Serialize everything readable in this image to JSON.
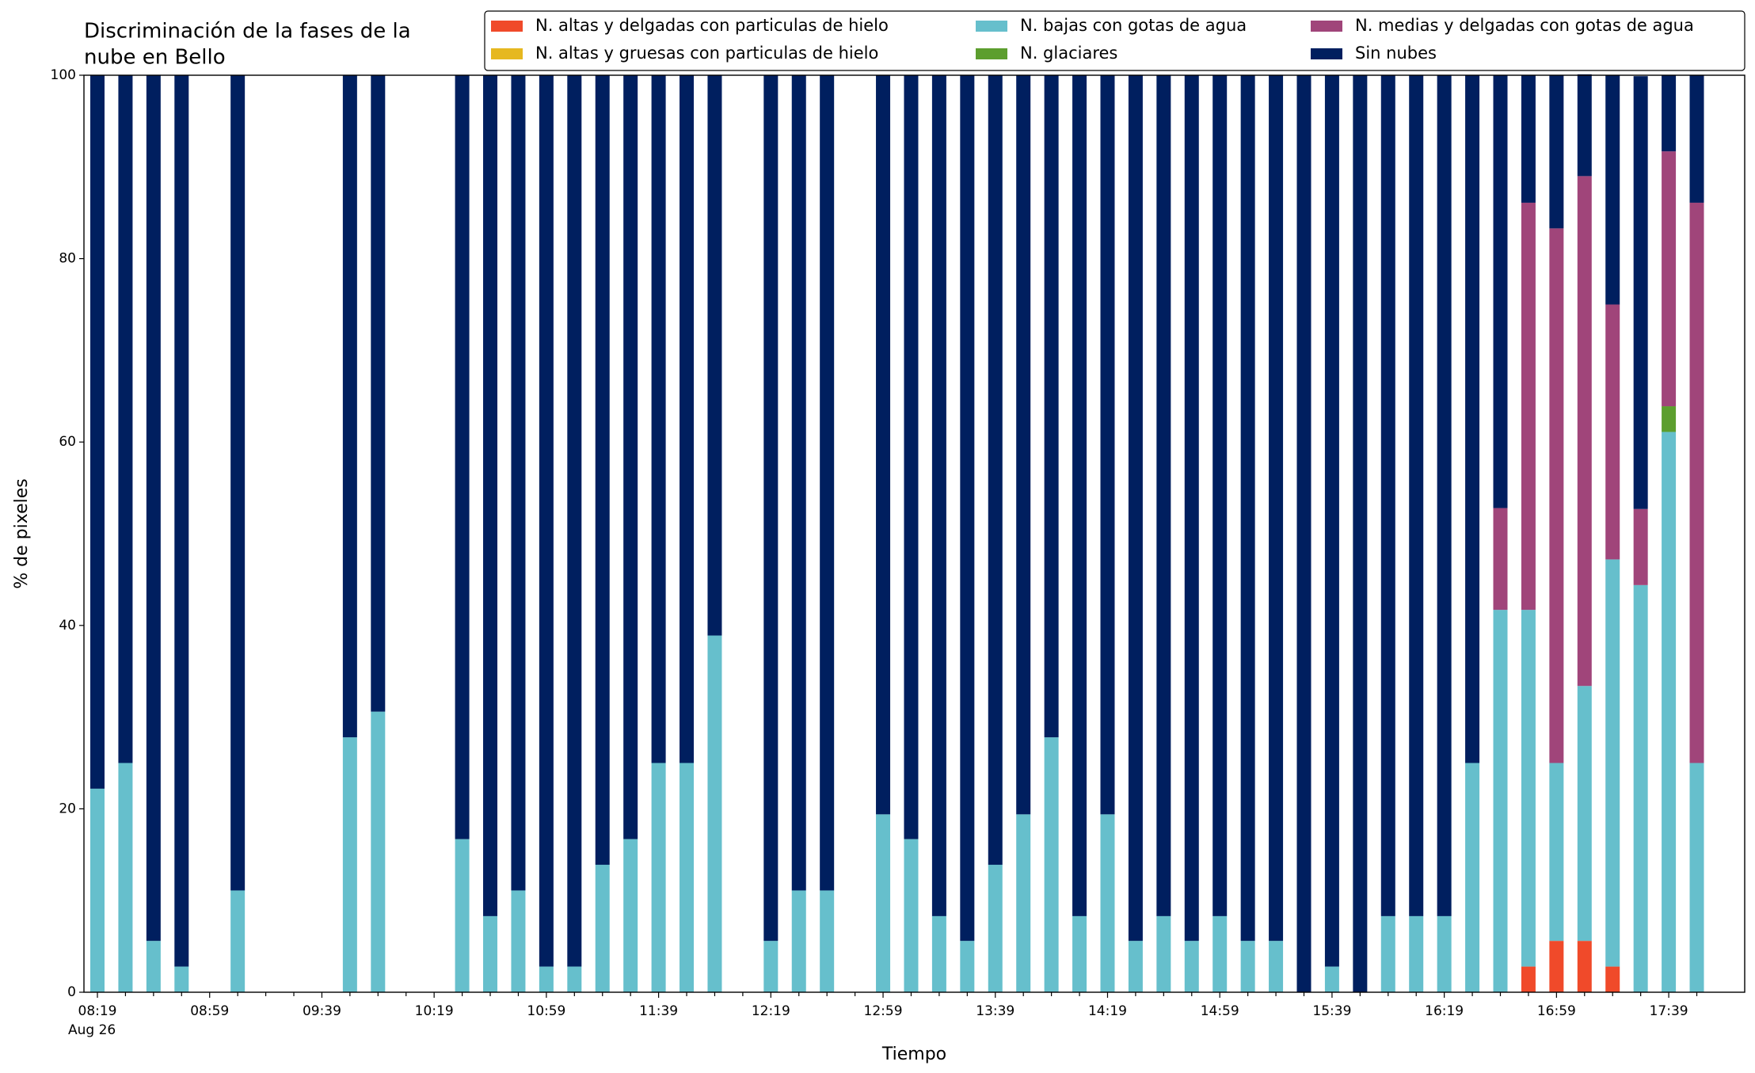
{
  "chart_data": {
    "type": "bar",
    "stacked": true,
    "title": [
      "Discriminación de la fases de la",
      "nube en Bello"
    ],
    "xlabel": "Tiempo",
    "ylabel": "% de pixeles",
    "x_sublabel": "Aug 26",
    "categories": [
      "08:19",
      null,
      null,
      null,
      "08:59",
      null,
      null,
      null,
      "09:39",
      null,
      null,
      null,
      "10:19",
      null,
      null,
      null,
      "10:59",
      null,
      null,
      null,
      "11:39",
      null,
      null,
      null,
      "12:19",
      null,
      null,
      null,
      "12:59",
      null,
      null,
      null,
      "13:39",
      null,
      null,
      null,
      "14:19",
      null,
      null,
      null,
      "14:59",
      null,
      null,
      null,
      "15:39",
      null,
      null,
      null,
      "16:19",
      null,
      null,
      null,
      "16:59",
      null,
      null,
      null,
      "17:39",
      null
    ],
    "ylim": [
      0,
      100
    ],
    "yticks": [
      0,
      20,
      40,
      60,
      80,
      100
    ],
    "legend": "top-right",
    "series": [
      {
        "name": "N. altas y delgadas con particulas de hielo",
        "color": "#f04a2a",
        "values": [
          0,
          0,
          0,
          0,
          null,
          0,
          null,
          null,
          null,
          0,
          0,
          null,
          null,
          0,
          0,
          0,
          0,
          0,
          0,
          0,
          0,
          0,
          0,
          null,
          0,
          0,
          0,
          null,
          0,
          0,
          0,
          0,
          0,
          0,
          0,
          0,
          0,
          0,
          0,
          0,
          0,
          0,
          0,
          0,
          0,
          0,
          0,
          0,
          0,
          0,
          0,
          2.8,
          5.6,
          5.6,
          2.8,
          0,
          0,
          0
        ]
      },
      {
        "name": "N. altas y gruesas con particulas de hielo",
        "color": "#e6b820",
        "values": [
          0,
          0,
          0,
          0,
          null,
          0,
          null,
          null,
          null,
          0,
          0,
          null,
          null,
          0,
          0,
          0,
          0,
          0,
          0,
          0,
          0,
          0,
          0,
          null,
          0,
          0,
          0,
          null,
          0,
          0,
          0,
          0,
          0,
          0,
          0,
          0,
          0,
          0,
          0,
          0,
          0,
          0,
          0,
          0,
          0,
          0,
          0,
          0,
          0,
          0,
          0,
          0,
          0,
          0,
          0,
          0,
          0,
          0
        ]
      },
      {
        "name": "N. bajas con gotas de agua",
        "color": "#66bfcc",
        "values": [
          22.2,
          25,
          5.6,
          2.8,
          null,
          11.1,
          null,
          null,
          null,
          27.8,
          30.6,
          null,
          null,
          16.7,
          8.3,
          11.1,
          2.8,
          2.8,
          13.9,
          16.7,
          25,
          25,
          38.9,
          null,
          5.6,
          11.1,
          11.1,
          null,
          19.4,
          16.7,
          8.3,
          5.6,
          13.9,
          19.4,
          27.8,
          8.3,
          19.4,
          5.6,
          8.3,
          5.6,
          8.3,
          5.6,
          5.6,
          0,
          2.8,
          0,
          8.3,
          8.3,
          8.3,
          25,
          41.7,
          38.9,
          19.4,
          27.8,
          44.4,
          44.4,
          61.1,
          25
        ]
      },
      {
        "name": "N. glaciares",
        "color": "#5c9e2e",
        "values": [
          0,
          0,
          0,
          0,
          null,
          0,
          null,
          null,
          null,
          0,
          0,
          null,
          null,
          0,
          0,
          0,
          0,
          0,
          0,
          0,
          0,
          0,
          0,
          null,
          0,
          0,
          0,
          null,
          0,
          0,
          0,
          0,
          0,
          0,
          0,
          0,
          0,
          0,
          0,
          0,
          0,
          0,
          0,
          0,
          0,
          0,
          0,
          0,
          0,
          0,
          0,
          0,
          0,
          0,
          0,
          0,
          2.8,
          0
        ]
      },
      {
        "name": "N. medias y delgadas con gotas de agua",
        "color": "#a0457a",
        "values": [
          0,
          0,
          0,
          0,
          null,
          0,
          null,
          null,
          null,
          0,
          0,
          null,
          null,
          0,
          0,
          0,
          0,
          0,
          0,
          0,
          0,
          0,
          0,
          null,
          0,
          0,
          0,
          null,
          0,
          0,
          0,
          0,
          0,
          0,
          0,
          0,
          0,
          0,
          0,
          0,
          0,
          0,
          0,
          0,
          0,
          0,
          0,
          0,
          0,
          0,
          11.1,
          44.4,
          58.3,
          55.6,
          27.8,
          8.3,
          27.8,
          61.1
        ]
      },
      {
        "name": "Sin nubes",
        "color": "#001f5f",
        "values": [
          77.8,
          75,
          94.4,
          97.2,
          null,
          88.9,
          null,
          null,
          null,
          72.2,
          69.4,
          null,
          null,
          83.3,
          91.7,
          88.9,
          97.2,
          97.2,
          86.1,
          83.3,
          75,
          75,
          61.1,
          null,
          94.4,
          88.9,
          88.9,
          null,
          80.6,
          83.3,
          91.7,
          94.4,
          86.1,
          80.6,
          72.2,
          91.7,
          80.6,
          94.4,
          91.7,
          94.4,
          91.7,
          94.4,
          94.4,
          100,
          97.2,
          100,
          91.7,
          91.7,
          91.7,
          75,
          47.2,
          13.9,
          16.7,
          11.1,
          25,
          47.2,
          8.3,
          13.9
        ]
      }
    ]
  }
}
